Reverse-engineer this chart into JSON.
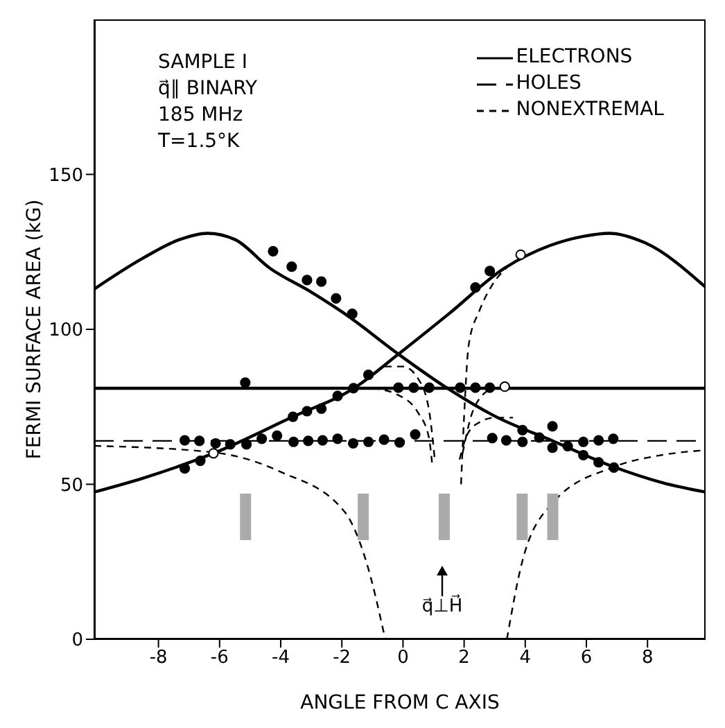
{
  "chart_data": {
    "type": "line",
    "xlabel": "ANGLE FROM C AXIS",
    "ylabel": "FERMI SURFACE AREA (kG)",
    "xlim": [
      -10.1,
      9.9
    ],
    "ylim": [
      0,
      200
    ],
    "xticks": [
      -8,
      -6,
      -4,
      -2,
      0,
      2,
      4,
      6,
      8
    ],
    "yticks": [
      0,
      50,
      100,
      150
    ],
    "grid": false,
    "legend": "top right",
    "annotations": [
      "SAMPLE I",
      "q⃗∥ BINARY",
      "185 MHz",
      "T=1.5°K",
      "q⃗⊥H⃗"
    ],
    "series": [
      {
        "name": "ELECTRONS",
        "line_style": "solid",
        "color": "#000000",
        "x": [
          -10.1,
          -8.5,
          -7.3,
          -6.4,
          -5.5,
          -4.35,
          -3,
          -1.9,
          -0.15,
          1.45,
          3,
          4.9,
          6.9,
          8.5,
          9.9
        ],
        "values": [
          113,
          123,
          129,
          131,
          129,
          119.7,
          112,
          105,
          92,
          81,
          72,
          64,
          55.6,
          50.5,
          47.5
        ]
      },
      {
        "line_style": "solid",
        "color": "#000000",
        "x": [
          -10.1,
          -8.5,
          -6.2,
          -3.6,
          -1.6,
          -0.15,
          1.5,
          3.3,
          4.8,
          5.9,
          6.75,
          7.9,
          9.9
        ],
        "values": [
          47.5,
          52,
          60,
          71.8,
          81,
          92,
          105,
          119.6,
          127,
          130,
          131,
          128,
          113.6
        ]
      },
      {
        "line_style": "solid",
        "color": "#000000",
        "x": [
          -10.1,
          9.9
        ],
        "values": [
          81,
          81
        ]
      },
      {
        "name": "HOLES",
        "line_style": "dashed",
        "color": "#000000",
        "x": [
          -10.1,
          9.9
        ],
        "values": [
          64,
          64
        ]
      },
      {
        "name": "NONEXTREMAL",
        "line_style": "dotted",
        "color": "#000000",
        "x": [
          -10.1,
          -6.2,
          -4,
          -1.9,
          -1.2,
          -0.58
        ],
        "values": [
          62.4,
          60.3,
          54,
          41,
          25,
          0
        ]
      },
      {
        "line_style": "dotted",
        "color": "#000000",
        "x": [
          3.4,
          3.9,
          4.9,
          6.9,
          8.5,
          9.9
        ],
        "values": [
          0,
          25,
          44,
          55.6,
          59.5,
          61
        ]
      },
      {
        "line_style": "dotted",
        "color": "#000000",
        "x": [
          -0.6,
          0,
          0.5,
          0.85,
          1.05
        ],
        "values": [
          88,
          88,
          84,
          74,
          57
        ]
      },
      {
        "line_style": "dotted",
        "color": "#000000",
        "x": [
          -1,
          -0.2,
          0.5,
          0.85,
          0.95
        ],
        "values": [
          81,
          79,
          73,
          65,
          57
        ]
      },
      {
        "line_style": "dotted",
        "color": "#000000",
        "x": [
          1.9,
          2.0,
          2.15,
          2.5,
          2.9,
          3.4
        ],
        "values": [
          50,
          72,
          95,
          106,
          114,
          120
        ]
      },
      {
        "line_style": "dotted",
        "color": "#000000",
        "x": [
          1.85,
          2.1,
          2.5,
          3.0,
          3.6
        ],
        "values": [
          58,
          66,
          70,
          71.5,
          71.5
        ]
      },
      {
        "line_style": "dotted",
        "color": "#000000",
        "x": [
          1.95,
          2.3,
          2.9
        ],
        "values": [
          60,
          74,
          81
        ]
      },
      {
        "type": "bar",
        "color": "#aaaaaa",
        "x": [
          -5.15,
          -1.3,
          1.35,
          3.9,
          4.9
        ],
        "base": [
          32,
          32,
          32,
          32,
          32
        ],
        "values": [
          15,
          15,
          15,
          15,
          15
        ]
      },
      {
        "type": "scatter",
        "marker": "circle",
        "color": "#000000",
        "x": [
          -4.25,
          -3.64,
          -3.14,
          -2.67,
          -2.19,
          -1.66,
          -5.16,
          -0.15,
          0.35,
          0.86,
          1.87,
          2.37,
          2.84,
          -7.14,
          -6.63,
          -3.6,
          -3.14,
          -2.67,
          -2.14,
          -1.62,
          -1.13,
          -7.14,
          -6.66,
          -6.13,
          -5.65,
          -5.12,
          -4.62,
          -4.12,
          -3.58,
          -3.1,
          -2.63,
          -2.14,
          -1.63,
          -1.13,
          -0.62,
          -0.11,
          0.4,
          2.92,
          3.38,
          3.91,
          4.46,
          4.89,
          3.91,
          4.89,
          5.39,
          5.9,
          5.9,
          6.4,
          6.4,
          6.88,
          6.9,
          2.37,
          2.84
        ],
        "values": [
          125.2,
          120.2,
          115.9,
          115.4,
          110,
          105,
          82.8,
          81.2,
          81.2,
          81.2,
          81.2,
          81.2,
          81.2,
          55.1,
          57.6,
          71.8,
          73.6,
          74.4,
          78.5,
          81,
          85.3,
          64.2,
          64,
          63.2,
          62.9,
          62.9,
          64.7,
          65.7,
          63.7,
          64,
          64.2,
          64.7,
          63.2,
          63.7,
          64.4,
          63.5,
          66.1,
          64.9,
          64.2,
          63.7,
          65.1,
          68.7,
          67.5,
          61.8,
          62.3,
          63.7,
          59.4,
          64.2,
          57.1,
          64.7,
          55.4,
          113.5,
          118.8
        ]
      },
      {
        "type": "scatter",
        "marker": "circle",
        "color": "#ffffff",
        "x": [
          -6.2,
          3.33,
          3.85
        ],
        "values": [
          60,
          81.5,
          124.1
        ]
      }
    ]
  }
}
